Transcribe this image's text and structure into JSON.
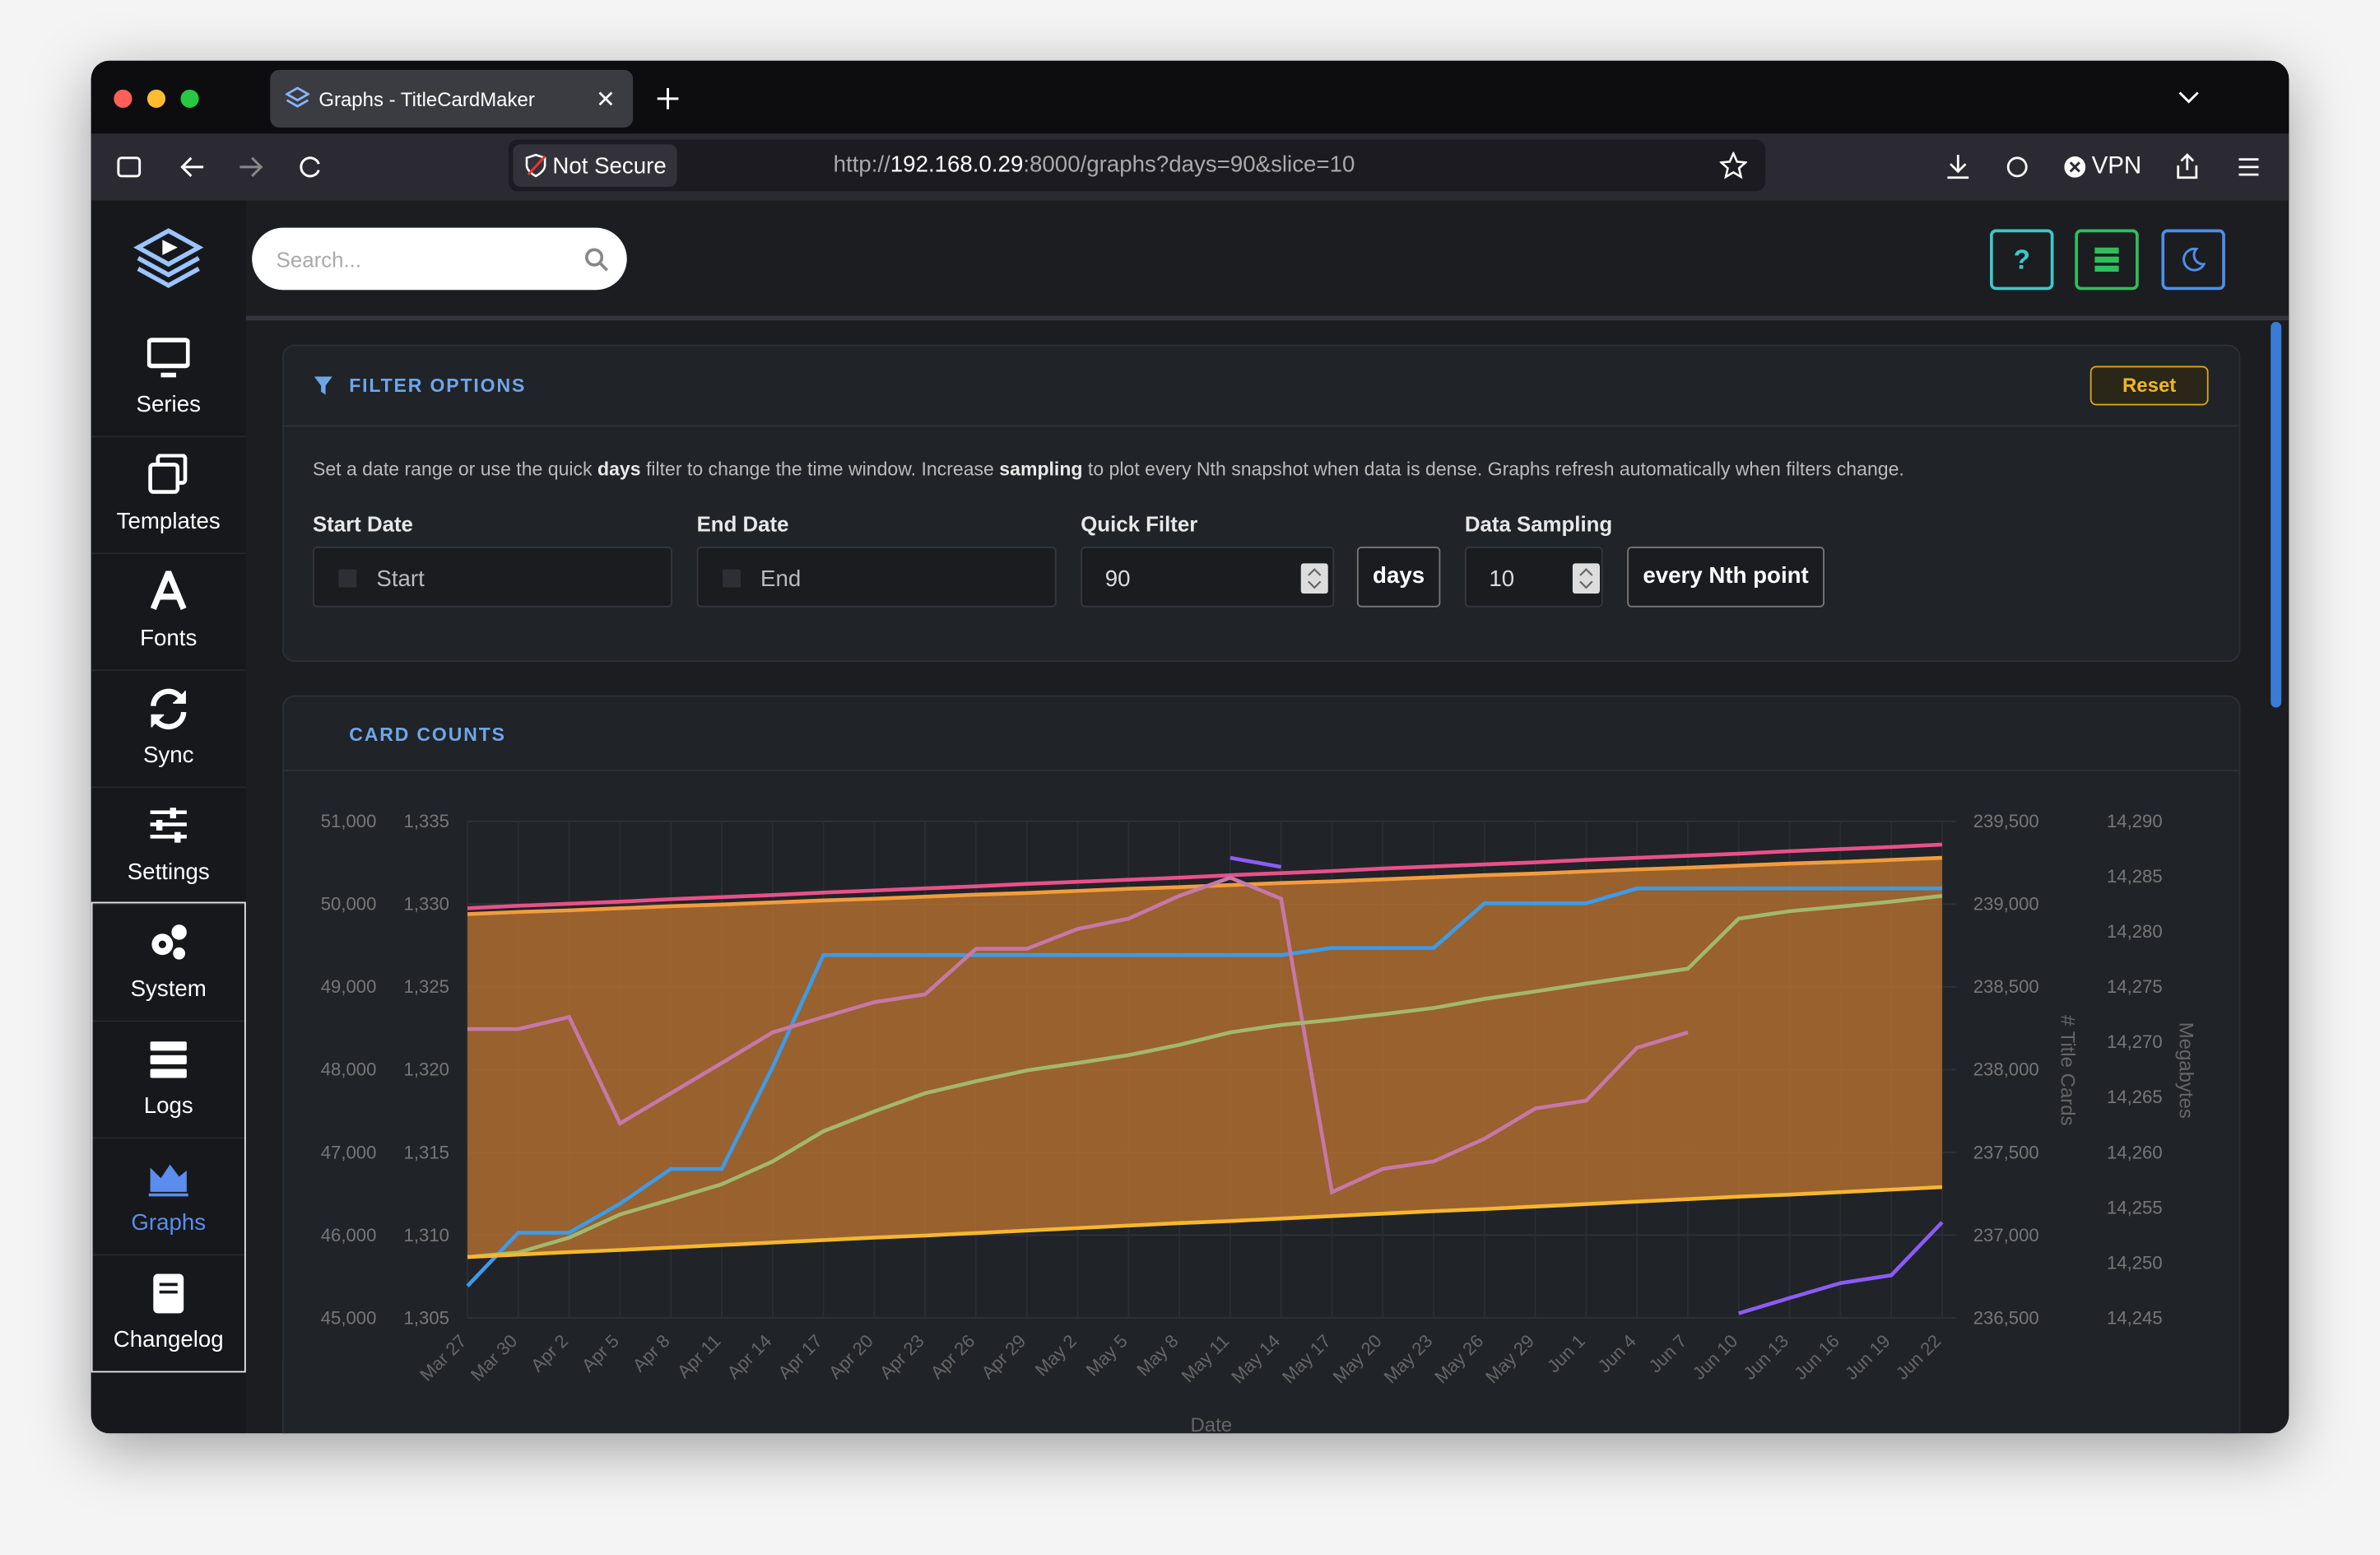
{
  "browser": {
    "tab_title": "Graphs - TitleCardMaker",
    "security": "Not Secure",
    "url_scheme": "http://",
    "url_host": "192.168.0.29",
    "url_rest": ":8000/graphs?days=90&slice=10",
    "vpn": "VPN"
  },
  "app": {
    "search_placeholder": "Search...",
    "help_button": "?",
    "sidebar": [
      "Series",
      "Templates",
      "Fonts",
      "Sync",
      "Settings",
      "System",
      "Logs",
      "Graphs",
      "Changelog"
    ],
    "active_item": "Graphs"
  },
  "filter": {
    "title": "FILTER OPTIONS",
    "reset": "Reset",
    "description": [
      "Set a date range or use the quick ",
      "days",
      " filter to change the time window. Increase ",
      "sampling",
      " to plot every Nth snapshot when data is dense. Graphs refresh automatically when filters change."
    ],
    "start_label": "Start Date",
    "start_placeholder": "Start",
    "end_label": "End Date",
    "end_placeholder": "End",
    "quick_label": "Quick Filter",
    "quick_value": "90",
    "quick_unit": "days",
    "sampling_label": "Data Sampling",
    "sampling_value": "10",
    "sampling_unit": "every Nth point"
  },
  "card": {
    "title": "CARD COUNTS"
  },
  "chart_data": {
    "type": "line",
    "x_label": "Date",
    "y2_label": "# Title Cards",
    "y3_label": "Megabytes",
    "grid": true,
    "categories": [
      "Mar 27",
      "Mar 30",
      "Apr 2",
      "Apr 5",
      "Apr 8",
      "Apr 11",
      "Apr 14",
      "Apr 17",
      "Apr 20",
      "Apr 23",
      "Apr 26",
      "Apr 29",
      "May 2",
      "May 5",
      "May 8",
      "May 11",
      "May 14",
      "May 17",
      "May 20",
      "May 23",
      "May 26",
      "May 29",
      "Jun 1",
      "Jun 4",
      "Jun 7",
      "Jun 10",
      "Jun 13",
      "Jun 16",
      "Jun 19",
      "Jun 22"
    ],
    "ylim": [
      45000,
      51000
    ],
    "yticks": [
      {
        "value": 45000,
        "label": "45,000"
      },
      {
        "value": 46000,
        "label": "46,000"
      },
      {
        "value": 47000,
        "label": "47,000"
      },
      {
        "value": 48000,
        "label": "48,000"
      },
      {
        "value": 49000,
        "label": "49,000"
      },
      {
        "value": 50000,
        "label": "50,000"
      },
      {
        "value": 51000,
        "label": "51,000"
      }
    ],
    "y1blim": [
      1305,
      1335
    ],
    "y1bticks": [
      {
        "value": 1305,
        "label": "1,305"
      },
      {
        "value": 1310,
        "label": "1,310"
      },
      {
        "value": 1315,
        "label": "1,315"
      },
      {
        "value": 1320,
        "label": "1,320"
      },
      {
        "value": 1325,
        "label": "1,325"
      },
      {
        "value": 1330,
        "label": "1,330"
      },
      {
        "value": 1335,
        "label": "1,335"
      }
    ],
    "y2lim": [
      236500,
      239500
    ],
    "y2ticks": [
      {
        "value": 236500,
        "label": "236,500"
      },
      {
        "value": 237000,
        "label": "237,000"
      },
      {
        "value": 237500,
        "label": "237,500"
      },
      {
        "value": 238000,
        "label": "238,000"
      },
      {
        "value": 238500,
        "label": "238,500"
      },
      {
        "value": 239000,
        "label": "239,000"
      },
      {
        "value": 239500,
        "label": "239,500"
      }
    ],
    "y3lim": [
      14245,
      14290
    ],
    "y3ticks": [
      {
        "value": 14245,
        "label": "14,245"
      },
      {
        "value": 14250,
        "label": "14,250"
      },
      {
        "value": 14255,
        "label": "14,255"
      },
      {
        "value": 14260,
        "label": "14,260"
      },
      {
        "value": 14265,
        "label": "14,265"
      },
      {
        "value": 14270,
        "label": "14,270"
      },
      {
        "value": 14275,
        "label": "14,275"
      },
      {
        "value": 14280,
        "label": "14,280"
      },
      {
        "value": 14285,
        "label": "14,285"
      },
      {
        "value": 14290,
        "label": "14,290"
      }
    ],
    "band_fill": "#b8702e",
    "series": [
      {
        "color": "#e8508a",
        "values": [
          49950,
          49980,
          50005,
          50030,
          50060,
          50085,
          50110,
          50140,
          50165,
          50190,
          50215,
          50245,
          50270,
          50295,
          50320,
          50350,
          50375,
          50400,
          50430,
          50455,
          50480,
          50505,
          50535,
          50560,
          50585,
          50610,
          50640,
          50665,
          50690,
          50720
        ]
      },
      {
        "color": "#f39c3c",
        "values": [
          49880,
          49905,
          49925,
          49950,
          49975,
          49995,
          50020,
          50045,
          50065,
          50090,
          50115,
          50135,
          50160,
          50185,
          50205,
          50230,
          50255,
          50275,
          50300,
          50325,
          50350,
          50370,
          50395,
          50420,
          50440,
          50465,
          50490,
          50510,
          50535,
          50560
        ]
      },
      {
        "color": "#3d9be9",
        "values": [
          45385,
          46030,
          46030,
          46380,
          46800,
          46800,
          48030,
          49385,
          49385,
          49385,
          49385,
          49385,
          49385,
          49385,
          49385,
          49385,
          49385,
          49470,
          49470,
          49470,
          50010,
          50010,
          50010,
          50190,
          50190,
          50190,
          50190,
          50190,
          50190,
          50190
        ]
      },
      {
        "color": "#c678a8",
        "values": [
          48490,
          48490,
          48635,
          47350,
          47715,
          48080,
          48450,
          48635,
          48815,
          48910,
          49460,
          49460,
          49700,
          49825,
          50100,
          50320,
          50065,
          46520,
          46800,
          46890,
          47165,
          47530,
          47625,
          48265,
          48450,
          null,
          null,
          null,
          null,
          null
        ]
      },
      {
        "color": "#a3b86c",
        "values": [
          45735,
          45790,
          45970,
          46250,
          46430,
          46615,
          46890,
          47255,
          47495,
          47715,
          47860,
          47990,
          48080,
          48175,
          48300,
          48450,
          48540,
          48600,
          48670,
          48745,
          48855,
          48945,
          49040,
          49130,
          49220,
          49825,
          49915,
          49970,
          50030,
          50100
        ]
      },
      {
        "color": "#f5b731",
        "values": [
          45735,
          45765,
          45795,
          45820,
          45850,
          45880,
          45910,
          45940,
          45970,
          45995,
          46025,
          46055,
          46085,
          46115,
          46145,
          46170,
          46200,
          46230,
          46260,
          46290,
          46315,
          46345,
          46375,
          46405,
          46435,
          46465,
          46490,
          46520,
          46550,
          46580
        ]
      },
      {
        "color": "#8b5cf6",
        "values": [
          null,
          null,
          null,
          null,
          null,
          null,
          null,
          null,
          null,
          null,
          null,
          null,
          null,
          null,
          null,
          50560,
          50450,
          null,
          null,
          null,
          null,
          null,
          null,
          null,
          null,
          45055,
          45240,
          45420,
          45515,
          46155
        ]
      }
    ]
  }
}
